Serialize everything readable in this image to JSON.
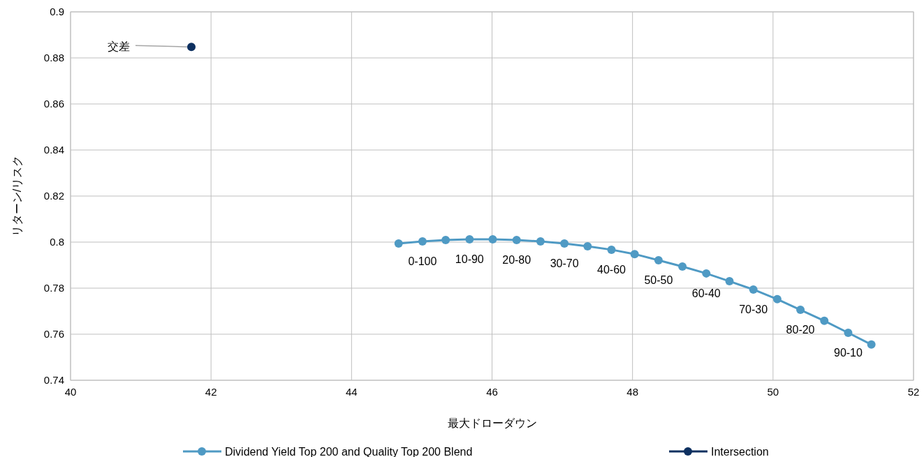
{
  "chart_data": {
    "type": "scatter",
    "xlabel": "最大ドローダウン",
    "ylabel": "リターン/リスク",
    "xlim": [
      40,
      52
    ],
    "xticks": [
      40,
      42,
      44,
      46,
      48,
      50,
      52
    ],
    "ylim": [
      0.74,
      0.9
    ],
    "yticks": [
      0.74,
      0.76,
      0.78,
      0.8,
      0.82,
      0.84,
      0.86,
      0.88,
      0.9
    ],
    "grid": true,
    "legend": "bottom",
    "marker": "circle",
    "line_style": "solid",
    "series": [
      {
        "name": "Dividend Yield Top 200 and Quality Top 200 Blend",
        "type": "line",
        "color": "#4f9ac4",
        "x": [
          44.67,
          45.01,
          45.34,
          45.68,
          46.01,
          46.35,
          46.69,
          47.03,
          47.36,
          47.7,
          48.03,
          48.37,
          48.71,
          49.05,
          49.38,
          49.72,
          50.06,
          50.39,
          50.73,
          51.07,
          51.4
        ],
        "values": [
          0.7994,
          0.8003,
          0.8009,
          0.8012,
          0.8012,
          0.8009,
          0.8003,
          0.7994,
          0.7982,
          0.7967,
          0.7948,
          0.7921,
          0.7894,
          0.7864,
          0.783,
          0.7794,
          0.7752,
          0.7706,
          0.7658,
          0.7606,
          0.7555
        ],
        "value_labels": [
          null,
          "0-100",
          null,
          "10-90",
          null,
          "20-80",
          null,
          "30-70",
          null,
          "40-60",
          null,
          "50-50",
          null,
          "60-40",
          null,
          "70-30",
          null,
          "80-20",
          null,
          "90-10",
          null
        ]
      },
      {
        "name": "Intersection",
        "type": "scatter",
        "color": "#0d3060",
        "x": [
          41.72
        ],
        "values": [
          0.8848
        ],
        "value_labels": [
          "交差"
        ]
      }
    ]
  }
}
